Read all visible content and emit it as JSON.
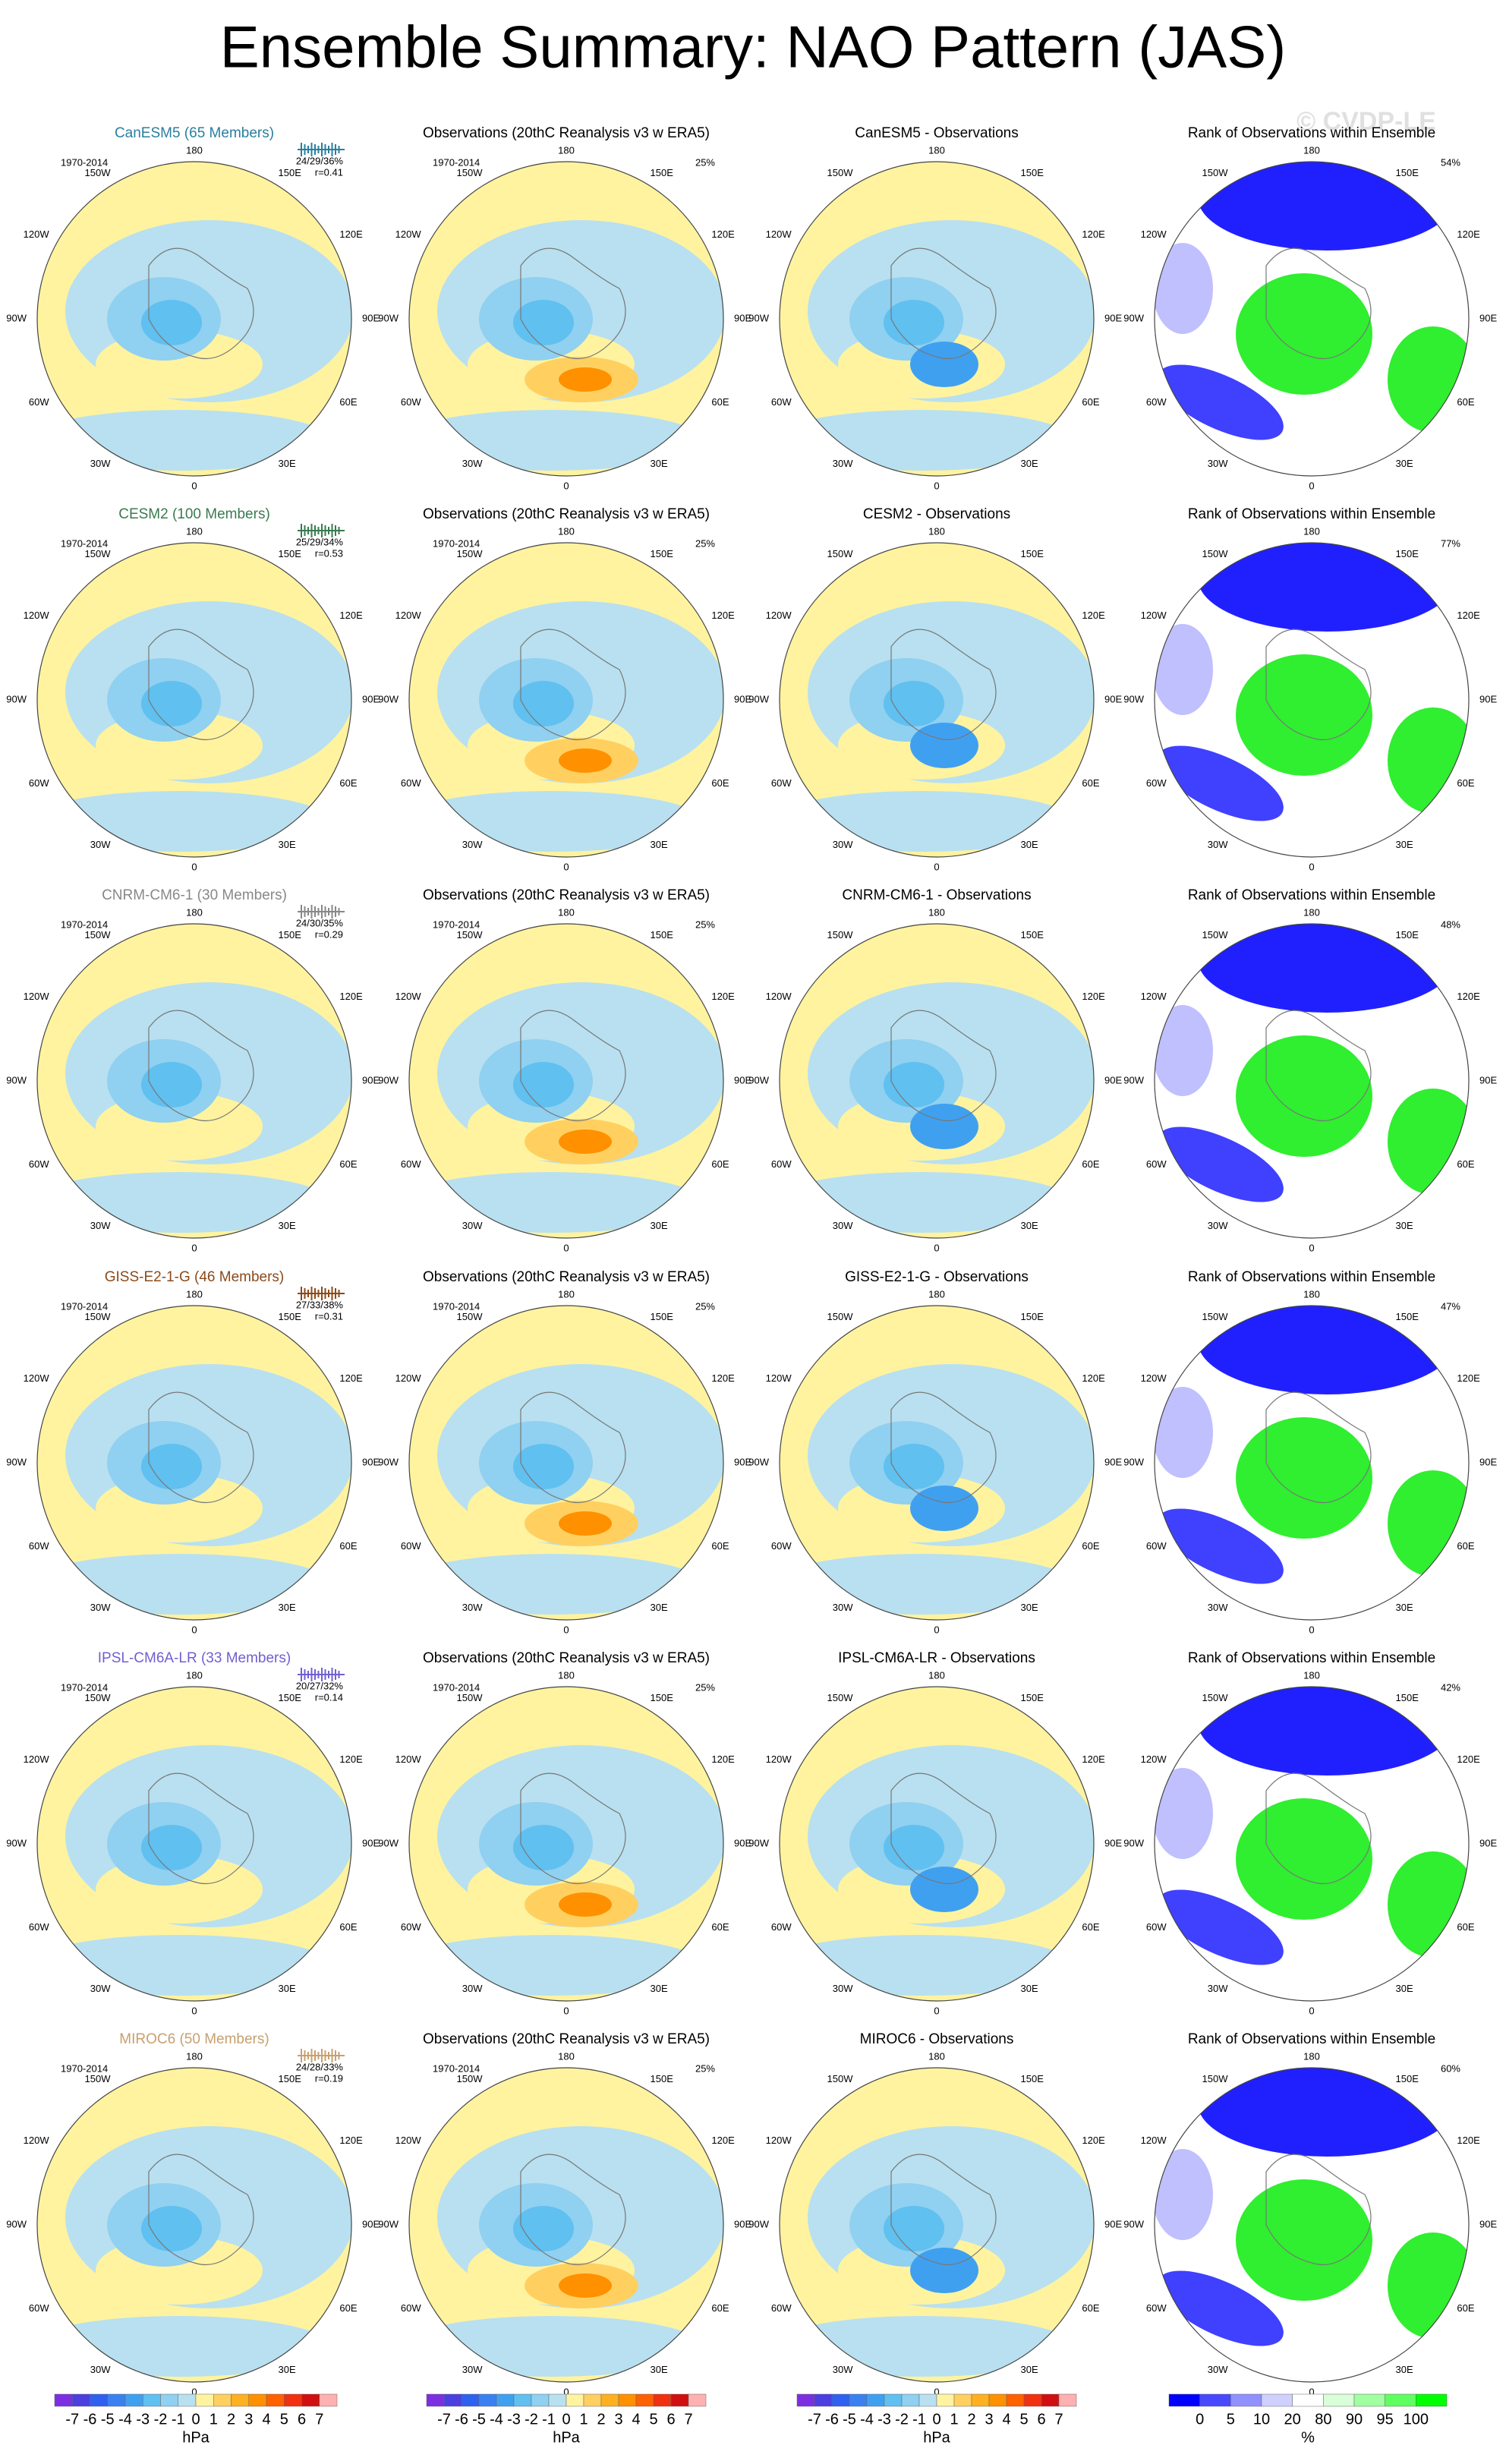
{
  "title": "Ensemble Summary: NAO Pattern (JAS)",
  "watermark": "© CVDP-LE",
  "lon_labels": [
    "180",
    "150E",
    "120E",
    "90E",
    "60E",
    "30E",
    "0",
    "30W",
    "60W",
    "90W",
    "120W",
    "150W"
  ],
  "rows": [
    {
      "model": {
        "title": "CanESM5 (65 Members)",
        "color": "#2a7fa0",
        "period": "1970-2014",
        "stats": "24/29/36%",
        "r": "r=0.41"
      },
      "obs": {
        "title": "Observations (20thC Reanalysis v3 w ERA5)",
        "period": "1970-2014",
        "pct": "25%"
      },
      "diff": {
        "title": "CanESM5 - Observations"
      },
      "rank": {
        "title": "Rank of Observations within Ensemble",
        "pct": "54%"
      }
    },
    {
      "model": {
        "title": "CESM2 (100 Members)",
        "color": "#3a7a50",
        "period": "1970-2014",
        "stats": "25/29/34%",
        "r": "r=0.53"
      },
      "obs": {
        "title": "Observations (20thC Reanalysis v3 w ERA5)",
        "period": "1970-2014",
        "pct": "25%"
      },
      "diff": {
        "title": "CESM2 - Observations"
      },
      "rank": {
        "title": "Rank of Observations within Ensemble",
        "pct": "77%"
      }
    },
    {
      "model": {
        "title": "CNRM-CM6-1 (30 Members)",
        "color": "#888888",
        "period": "1970-2014",
        "stats": "24/30/35%",
        "r": "r=0.29"
      },
      "obs": {
        "title": "Observations (20thC Reanalysis v3 w ERA5)",
        "period": "1970-2014",
        "pct": "25%"
      },
      "diff": {
        "title": "CNRM-CM6-1 - Observations"
      },
      "rank": {
        "title": "Rank of Observations within Ensemble",
        "pct": "48%"
      }
    },
    {
      "model": {
        "title": "GISS-E2-1-G (46 Members)",
        "color": "#8b4a1a",
        "period": "1970-2014",
        "stats": "27/33/38%",
        "r": "r=0.31"
      },
      "obs": {
        "title": "Observations (20thC Reanalysis v3 w ERA5)",
        "period": "1970-2014",
        "pct": "25%"
      },
      "diff": {
        "title": "GISS-E2-1-G - Observations"
      },
      "rank": {
        "title": "Rank of Observations within Ensemble",
        "pct": "47%"
      }
    },
    {
      "model": {
        "title": "IPSL-CM6A-LR (33 Members)",
        "color": "#7060d0",
        "period": "1970-2014",
        "stats": "20/27/32%",
        "r": "r=0.14"
      },
      "obs": {
        "title": "Observations (20thC Reanalysis v3 w ERA5)",
        "period": "1970-2014",
        "pct": "25%"
      },
      "diff": {
        "title": "IPSL-CM6A-LR - Observations"
      },
      "rank": {
        "title": "Rank of Observations within Ensemble",
        "pct": "42%"
      }
    },
    {
      "model": {
        "title": "MIROC6 (50 Members)",
        "color": "#c8a070",
        "period": "1970-2014",
        "stats": "24/28/33%",
        "r": "r=0.19"
      },
      "obs": {
        "title": "Observations (20thC Reanalysis v3 w ERA5)",
        "period": "1970-2014",
        "pct": "25%"
      },
      "diff": {
        "title": "MIROC6 - Observations"
      },
      "rank": {
        "title": "Rank of Observations within Ensemble",
        "pct": "60%"
      }
    }
  ],
  "colorbars": [
    {
      "labels": [
        -7,
        -6,
        -5,
        -4,
        -3,
        -2,
        -1,
        0,
        1,
        2,
        3,
        4,
        5,
        6,
        7
      ],
      "unit": "hPa",
      "colors": [
        "#7b2fe0",
        "#4b3fe0",
        "#3060f0",
        "#3a80f0",
        "#40a0f0",
        "#60c0f0",
        "#90d0f0",
        "#b8e0f0",
        "#fff3a0",
        "#ffd060",
        "#ffb020",
        "#ff9000",
        "#ff6000",
        "#f03010",
        "#d01010",
        "#ffb0b0"
      ]
    },
    {
      "labels": [
        -7,
        -6,
        -5,
        -4,
        -3,
        -2,
        -1,
        0,
        1,
        2,
        3,
        4,
        5,
        6,
        7
      ],
      "unit": "hPa",
      "colors": [
        "#7b2fe0",
        "#4b3fe0",
        "#3060f0",
        "#3a80f0",
        "#40a0f0",
        "#60c0f0",
        "#90d0f0",
        "#b8e0f0",
        "#fff3a0",
        "#ffd060",
        "#ffb020",
        "#ff9000",
        "#ff6000",
        "#f03010",
        "#d01010",
        "#ffb0b0"
      ]
    },
    {
      "labels": [
        -7,
        -6,
        -5,
        -4,
        -3,
        -2,
        -1,
        0,
        1,
        2,
        3,
        4,
        5,
        6,
        7
      ],
      "unit": "hPa",
      "colors": [
        "#7b2fe0",
        "#4b3fe0",
        "#3060f0",
        "#3a80f0",
        "#40a0f0",
        "#60c0f0",
        "#90d0f0",
        "#b8e0f0",
        "#fff3a0",
        "#ffd060",
        "#ffb020",
        "#ff9000",
        "#ff6000",
        "#f03010",
        "#d01010",
        "#ffb0b0"
      ]
    },
    {
      "labels": [
        0,
        5,
        10,
        20,
        80,
        90,
        95,
        100
      ],
      "unit": "%",
      "colors": [
        "#0000ff",
        "#4848ff",
        "#9090ff",
        "#d0d0ff",
        "#ffffff",
        "#d8ffd8",
        "#a0ffa0",
        "#60ff60",
        "#00ff00"
      ]
    }
  ]
}
